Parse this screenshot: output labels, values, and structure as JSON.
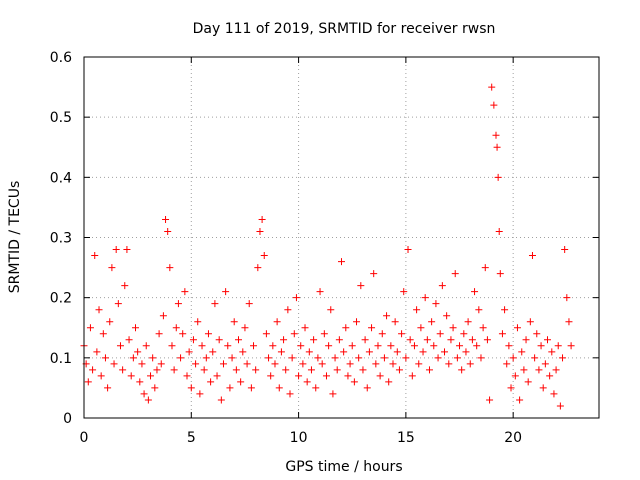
{
  "chart_data": {
    "type": "scatter",
    "title": "Day 111 of 2019, SRMTID for receiver rwsn",
    "xlabel": "GPS time / hours",
    "ylabel": "SRMTID / TECUs",
    "xlim": [
      0,
      24
    ],
    "ylim": [
      0,
      0.6
    ],
    "xticks": [
      0,
      5,
      10,
      15,
      20
    ],
    "yticks": [
      0,
      0.1,
      0.2,
      0.3,
      0.4,
      0.5,
      0.6
    ],
    "grid": true,
    "marker": "+",
    "marker_color": "#ff0000",
    "series": [
      {
        "name": "SRMTID",
        "x": [
          0.0,
          0.1,
          0.2,
          0.3,
          0.4,
          0.5,
          0.6,
          0.7,
          0.8,
          0.9,
          1.0,
          1.1,
          1.2,
          1.3,
          1.4,
          1.5,
          1.6,
          1.7,
          1.8,
          1.9,
          2.0,
          2.1,
          2.2,
          2.3,
          2.4,
          2.5,
          2.6,
          2.7,
          2.8,
          2.9,
          3.0,
          3.1,
          3.2,
          3.3,
          3.4,
          3.5,
          3.6,
          3.7,
          3.8,
          3.9,
          4.0,
          4.1,
          4.2,
          4.3,
          4.4,
          4.5,
          4.6,
          4.7,
          4.8,
          4.9,
          5.0,
          5.1,
          5.2,
          5.3,
          5.4,
          5.5,
          5.6,
          5.7,
          5.8,
          5.9,
          6.0,
          6.1,
          6.2,
          6.3,
          6.4,
          6.5,
          6.6,
          6.7,
          6.8,
          6.9,
          7.0,
          7.1,
          7.2,
          7.3,
          7.4,
          7.5,
          7.6,
          7.7,
          7.8,
          7.9,
          8.0,
          8.1,
          8.2,
          8.3,
          8.4,
          8.5,
          8.6,
          8.7,
          8.8,
          8.9,
          9.0,
          9.1,
          9.2,
          9.3,
          9.4,
          9.5,
          9.6,
          9.7,
          9.8,
          9.9,
          10.0,
          10.1,
          10.2,
          10.3,
          10.4,
          10.5,
          10.6,
          10.7,
          10.8,
          10.9,
          11.0,
          11.1,
          11.2,
          11.3,
          11.4,
          11.5,
          11.6,
          11.7,
          11.8,
          11.9,
          12.0,
          12.1,
          12.2,
          12.3,
          12.4,
          12.5,
          12.6,
          12.7,
          12.8,
          12.9,
          13.0,
          13.1,
          13.2,
          13.3,
          13.4,
          13.5,
          13.6,
          13.7,
          13.8,
          13.9,
          14.0,
          14.1,
          14.2,
          14.3,
          14.4,
          14.5,
          14.6,
          14.7,
          14.8,
          14.9,
          15.0,
          15.1,
          15.2,
          15.3,
          15.4,
          15.5,
          15.6,
          15.7,
          15.8,
          15.9,
          16.0,
          16.1,
          16.2,
          16.3,
          16.4,
          16.5,
          16.6,
          16.7,
          16.8,
          16.9,
          17.0,
          17.1,
          17.2,
          17.3,
          17.4,
          17.5,
          17.6,
          17.7,
          17.8,
          17.9,
          18.0,
          18.1,
          18.2,
          18.3,
          18.4,
          18.5,
          18.6,
          18.7,
          18.8,
          18.9,
          19.0,
          19.1,
          19.2,
          19.25,
          19.3,
          19.35,
          19.4,
          19.5,
          19.6,
          19.7,
          19.8,
          19.9,
          20.0,
          20.1,
          20.2,
          20.3,
          20.4,
          20.5,
          20.6,
          20.7,
          20.8,
          20.9,
          21.0,
          21.1,
          21.2,
          21.3,
          21.4,
          21.5,
          21.6,
          21.7,
          21.8,
          21.9,
          22.0,
          22.1,
          22.2,
          22.3,
          22.4,
          22.5,
          22.6,
          22.7
        ],
        "y": [
          0.12,
          0.09,
          0.06,
          0.15,
          0.08,
          0.27,
          0.11,
          0.18,
          0.07,
          0.14,
          0.1,
          0.05,
          0.16,
          0.25,
          0.09,
          0.28,
          0.19,
          0.12,
          0.08,
          0.22,
          0.28,
          0.13,
          0.07,
          0.1,
          0.15,
          0.11,
          0.06,
          0.09,
          0.04,
          0.12,
          0.03,
          0.07,
          0.1,
          0.05,
          0.08,
          0.14,
          0.09,
          0.17,
          0.33,
          0.31,
          0.25,
          0.12,
          0.08,
          0.15,
          0.19,
          0.1,
          0.14,
          0.21,
          0.07,
          0.11,
          0.05,
          0.13,
          0.09,
          0.16,
          0.04,
          0.12,
          0.08,
          0.1,
          0.14,
          0.06,
          0.11,
          0.19,
          0.07,
          0.13,
          0.03,
          0.09,
          0.21,
          0.12,
          0.05,
          0.1,
          0.16,
          0.08,
          0.13,
          0.06,
          0.11,
          0.15,
          0.09,
          0.19,
          0.05,
          0.12,
          0.08,
          0.25,
          0.31,
          0.33,
          0.27,
          0.14,
          0.1,
          0.07,
          0.12,
          0.09,
          0.16,
          0.05,
          0.11,
          0.13,
          0.08,
          0.18,
          0.04,
          0.1,
          0.14,
          0.2,
          0.07,
          0.12,
          0.09,
          0.15,
          0.06,
          0.11,
          0.08,
          0.13,
          0.05,
          0.1,
          0.21,
          0.09,
          0.14,
          0.07,
          0.12,
          0.18,
          0.04,
          0.1,
          0.08,
          0.13,
          0.26,
          0.11,
          0.15,
          0.07,
          0.09,
          0.12,
          0.06,
          0.16,
          0.1,
          0.22,
          0.08,
          0.13,
          0.05,
          0.11,
          0.15,
          0.24,
          0.09,
          0.12,
          0.07,
          0.14,
          0.1,
          0.17,
          0.06,
          0.12,
          0.09,
          0.16,
          0.11,
          0.08,
          0.14,
          0.21,
          0.1,
          0.28,
          0.13,
          0.07,
          0.12,
          0.18,
          0.09,
          0.15,
          0.11,
          0.2,
          0.13,
          0.08,
          0.16,
          0.12,
          0.19,
          0.1,
          0.14,
          0.22,
          0.11,
          0.17,
          0.09,
          0.13,
          0.15,
          0.24,
          0.1,
          0.12,
          0.08,
          0.14,
          0.11,
          0.16,
          0.09,
          0.13,
          0.21,
          0.12,
          0.18,
          0.1,
          0.15,
          0.25,
          0.13,
          0.03,
          0.55,
          0.52,
          0.47,
          0.45,
          0.4,
          0.31,
          0.24,
          0.14,
          0.18,
          0.09,
          0.12,
          0.05,
          0.1,
          0.07,
          0.15,
          0.03,
          0.11,
          0.08,
          0.13,
          0.06,
          0.16,
          0.27,
          0.1,
          0.14,
          0.08,
          0.12,
          0.05,
          0.09,
          0.13,
          0.07,
          0.11,
          0.04,
          0.08,
          0.12,
          0.02,
          0.1,
          0.28,
          0.2,
          0.16,
          0.12
        ]
      }
    ]
  }
}
